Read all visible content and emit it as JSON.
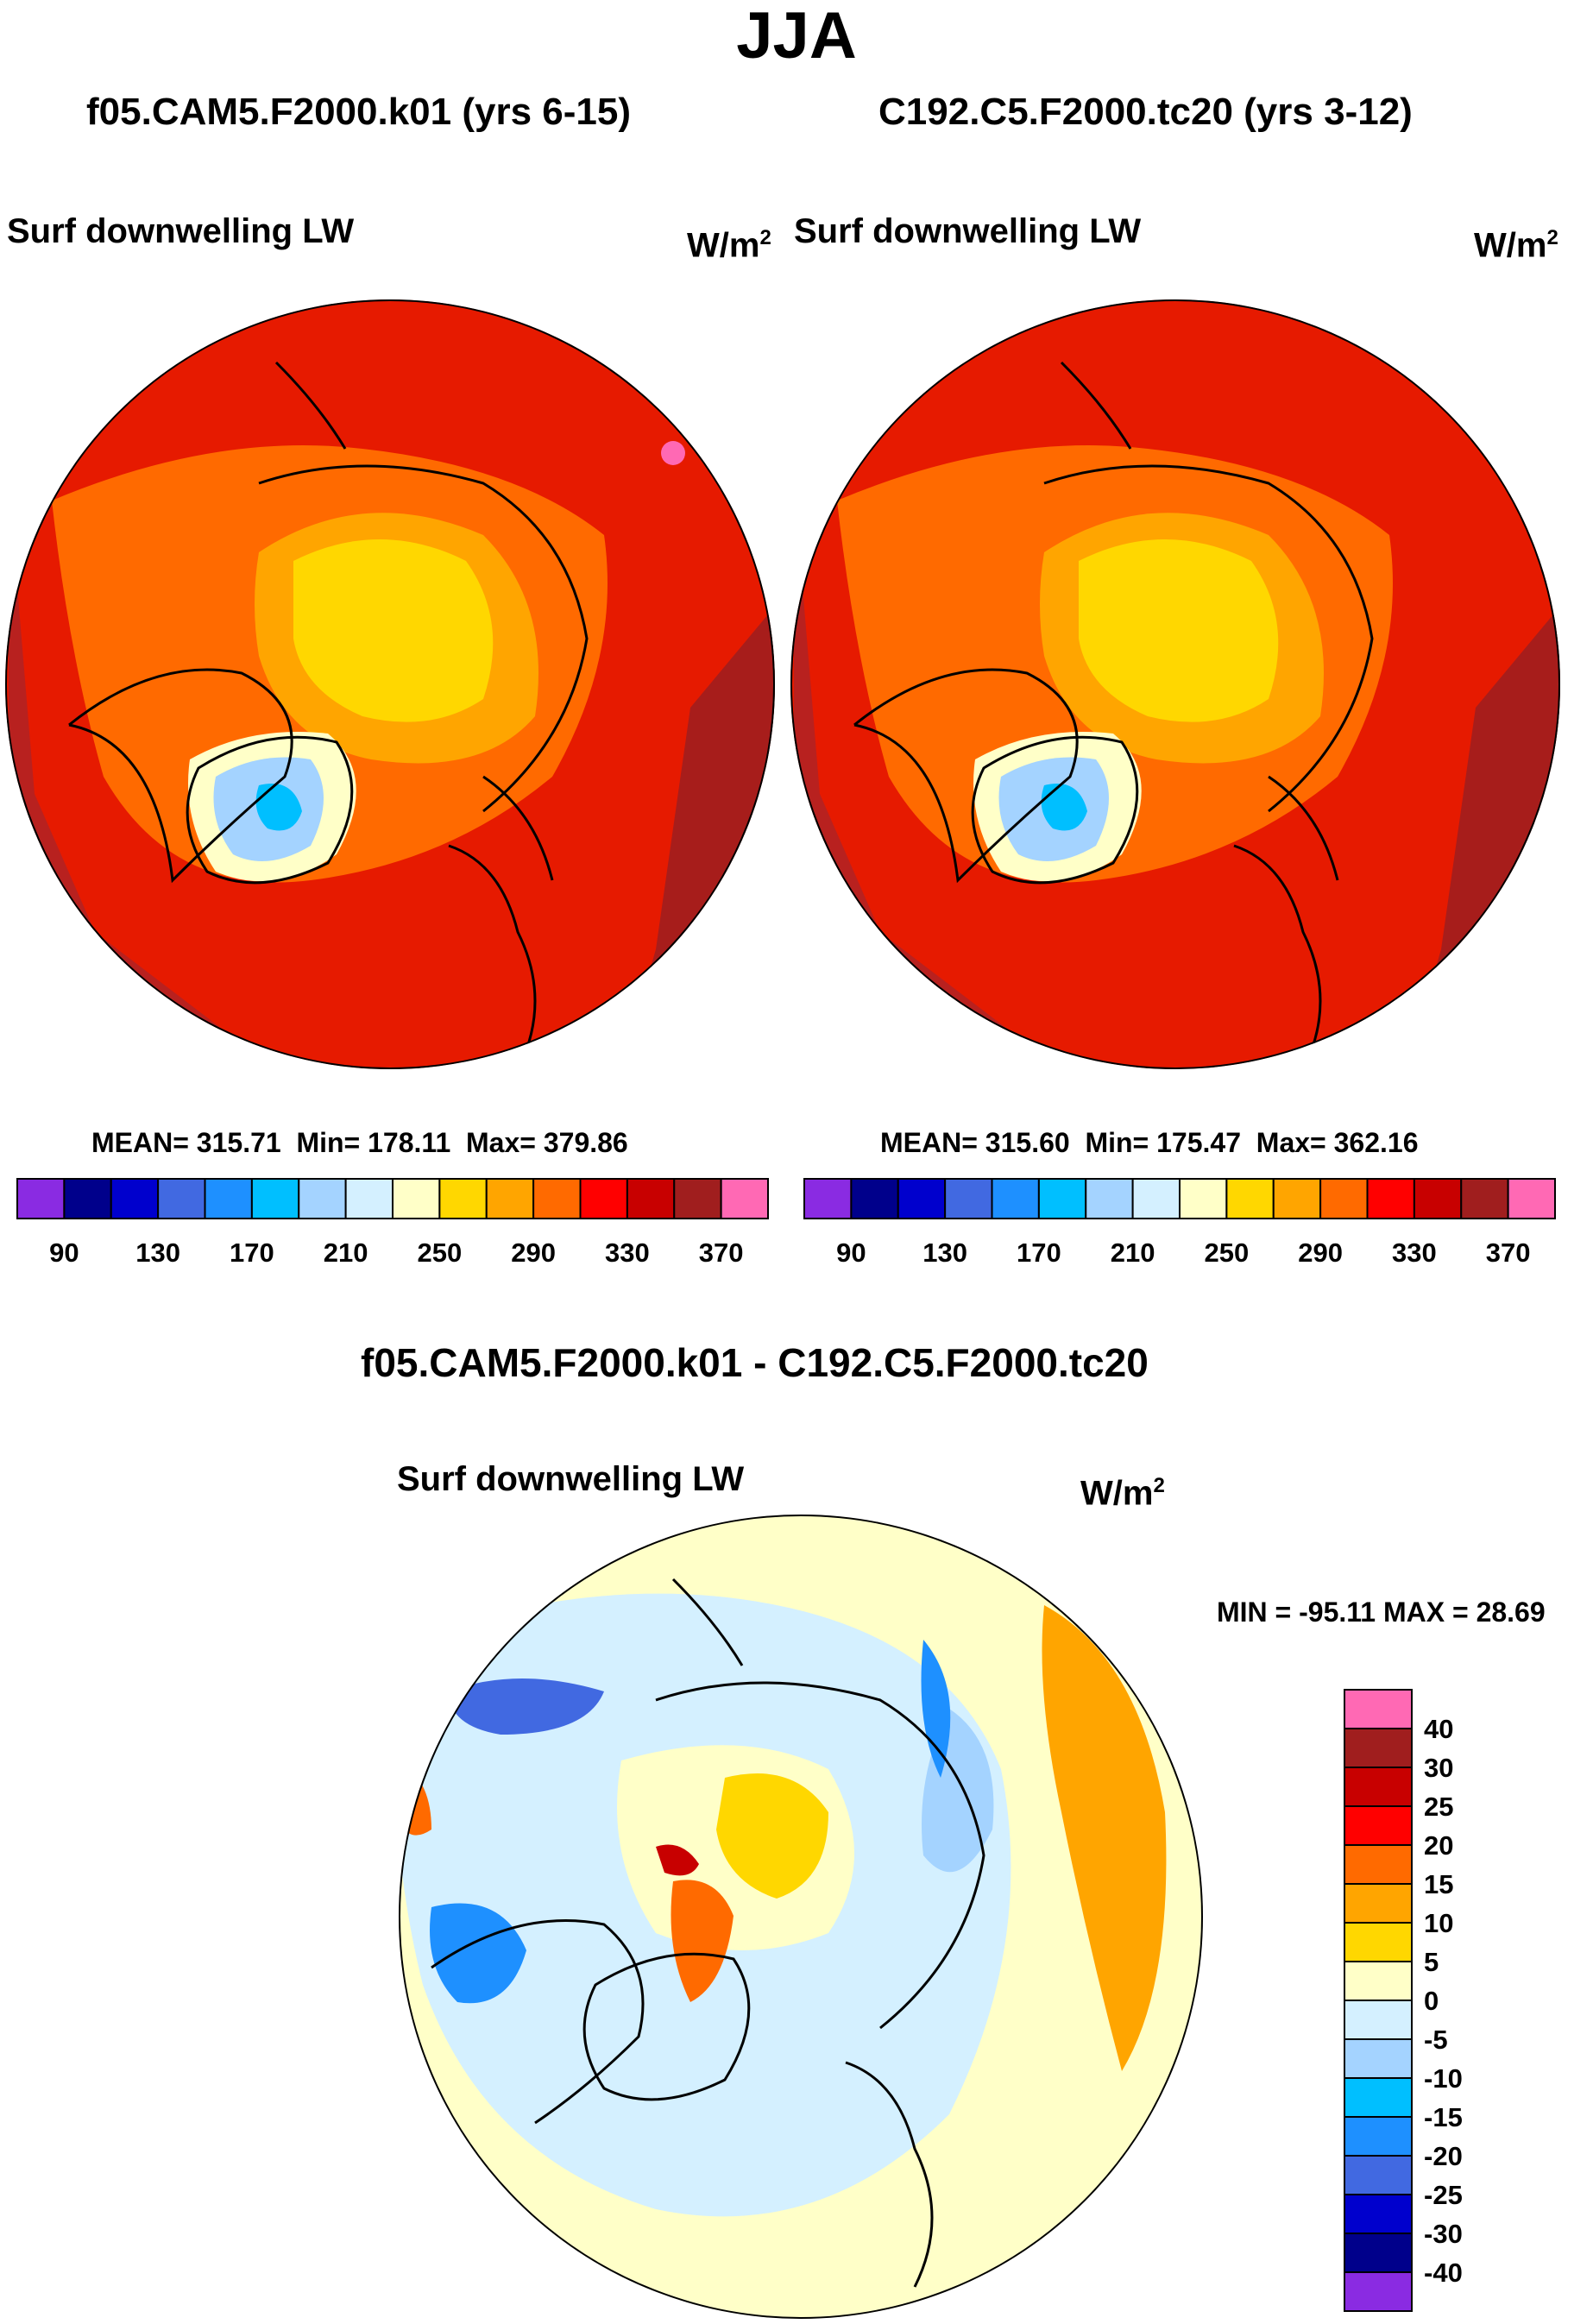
{
  "season": "JJA",
  "left_panel": {
    "title": "f05.CAM5.F2000.k01 (yrs 6-15)",
    "variable": "Surf downwelling LW",
    "units": "W/m",
    "units_exponent": "2",
    "stats": {
      "mean_label": "MEAN= 315.71",
      "min_label": "Min= 178.11",
      "max_label": "Max= 379.86"
    }
  },
  "right_panel": {
    "title": "C192.C5.F2000.tc20 (yrs 3-12)",
    "variable": "Surf downwelling LW",
    "units": "W/m",
    "units_exponent": "2",
    "stats": {
      "mean_label": "MEAN= 315.60",
      "min_label": "Min= 175.47",
      "max_label": "Max= 362.16"
    }
  },
  "diff_panel": {
    "title": "f05.CAM5.F2000.k01 - C192.C5.F2000.tc20",
    "variable": "Surf downwelling LW",
    "units": "W/m",
    "units_exponent": "2",
    "minmax_label": "MIN = -95.11 MAX =  28.69"
  },
  "chart_data": [
    {
      "type": "heatmap",
      "projection": "north-polar-stereographic",
      "title": "f05.CAM5.F2000.k01 (yrs 6-15)",
      "variable": "Surf downwelling LW",
      "units": "W/m^2",
      "mean": 315.71,
      "min": 178.11,
      "max": 379.86,
      "colorbar": {
        "orientation": "horizontal",
        "levels": [
          90,
          110,
          130,
          150,
          170,
          190,
          210,
          230,
          250,
          270,
          290,
          310,
          330,
          350,
          370
        ],
        "tick_labels": [
          "90",
          "130",
          "170",
          "210",
          "250",
          "290",
          "330",
          "370"
        ],
        "colors": [
          "#8a2be2",
          "#00008b",
          "#0000cd",
          "#4169e1",
          "#1e90ff",
          "#00bfff",
          "#a4d3ff",
          "#d4f0ff",
          "#ffffc8",
          "#ffd700",
          "#ffa500",
          "#ff6a00",
          "#ff0000",
          "#c80000",
          "#a01e1e",
          "#ff69b4"
        ]
      }
    },
    {
      "type": "heatmap",
      "projection": "north-polar-stereographic",
      "title": "C192.C5.F2000.tc20 (yrs 3-12)",
      "variable": "Surf downwelling LW",
      "units": "W/m^2",
      "mean": 315.6,
      "min": 175.47,
      "max": 362.16,
      "colorbar": {
        "orientation": "horizontal",
        "levels": [
          90,
          110,
          130,
          150,
          170,
          190,
          210,
          230,
          250,
          270,
          290,
          310,
          330,
          350,
          370
        ],
        "tick_labels": [
          "90",
          "130",
          "170",
          "210",
          "250",
          "290",
          "330",
          "370"
        ],
        "colors": [
          "#8a2be2",
          "#00008b",
          "#0000cd",
          "#4169e1",
          "#1e90ff",
          "#00bfff",
          "#a4d3ff",
          "#d4f0ff",
          "#ffffc8",
          "#ffd700",
          "#ffa500",
          "#ff6a00",
          "#ff0000",
          "#c80000",
          "#a01e1e",
          "#ff69b4"
        ]
      }
    },
    {
      "type": "heatmap",
      "projection": "north-polar-stereographic",
      "title": "f05.CAM5.F2000.k01 - C192.C5.F2000.tc20",
      "variable": "Surf downwelling LW",
      "units": "W/m^2",
      "min": -95.11,
      "max": 28.69,
      "colorbar": {
        "orientation": "vertical",
        "levels": [
          -40,
          -30,
          -25,
          -20,
          -15,
          -10,
          -5,
          0,
          5,
          10,
          15,
          20,
          25,
          30,
          40
        ],
        "tick_labels": [
          "-40",
          "-30",
          "-25",
          "-20",
          "-15",
          "-10",
          "-5",
          "0",
          "5",
          "10",
          "15",
          "20",
          "25",
          "30",
          "40"
        ],
        "colors": [
          "#8a2be2",
          "#00008b",
          "#0000cd",
          "#4169e1",
          "#1e90ff",
          "#00bfff",
          "#a4d3ff",
          "#d4f0ff",
          "#ffffc8",
          "#ffd700",
          "#ffa500",
          "#ff6a00",
          "#ff0000",
          "#c80000",
          "#a01e1e",
          "#ff69b4"
        ]
      }
    }
  ]
}
